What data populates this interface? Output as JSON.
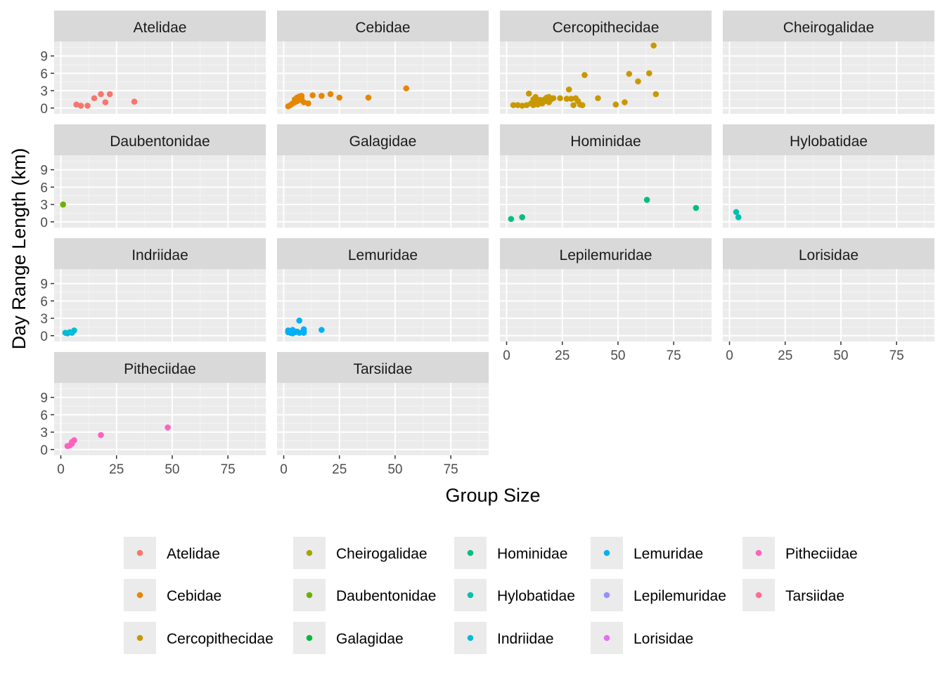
{
  "chart_data": {
    "type": "scatter",
    "xlabel": "Group Size",
    "ylabel": "Day Range Length (km)",
    "xlim": [
      -3,
      92
    ],
    "ylim": [
      -1,
      11.5
    ],
    "x_ticks": [
      0,
      25,
      50,
      75
    ],
    "y_ticks": [
      0,
      3,
      6,
      9
    ],
    "x_tick_labels": [
      "0",
      "25",
      "50",
      "75"
    ],
    "y_tick_labels": [
      "0",
      "3",
      "6",
      "9"
    ],
    "grid": true,
    "legend_position": "bottom",
    "facet_layout": {
      "columns": 4,
      "rows": 5
    },
    "facets": [
      {
        "name": "Atelidae",
        "color": "#F8766D",
        "points": [
          [
            7,
            0.6
          ],
          [
            9,
            0.4
          ],
          [
            12,
            0.4
          ],
          [
            15,
            1.7
          ],
          [
            18,
            2.4
          ],
          [
            20,
            1.0
          ],
          [
            22,
            2.4
          ],
          [
            33,
            1.1
          ]
        ]
      },
      {
        "name": "Cebidae",
        "color": "#E58700",
        "points": [
          [
            2,
            0.3
          ],
          [
            3,
            0.5
          ],
          [
            4,
            0.8
          ],
          [
            5,
            1.5
          ],
          [
            5,
            1.0
          ],
          [
            6,
            1.2
          ],
          [
            6,
            1.8
          ],
          [
            7,
            2.0
          ],
          [
            7,
            1.4
          ],
          [
            8,
            2.1
          ],
          [
            8,
            1.6
          ],
          [
            9,
            1.0
          ],
          [
            11,
            0.8
          ],
          [
            13,
            2.2
          ],
          [
            17,
            2.1
          ],
          [
            21,
            2.4
          ],
          [
            25,
            1.8
          ],
          [
            38,
            1.8
          ],
          [
            55,
            3.4
          ]
        ]
      },
      {
        "name": "Cercopithecidae",
        "color": "#C99800",
        "points": [
          [
            3,
            0.5
          ],
          [
            5,
            0.5
          ],
          [
            7,
            0.4
          ],
          [
            9,
            0.5
          ],
          [
            10,
            2.5
          ],
          [
            11,
            0.8
          ],
          [
            12,
            1.5
          ],
          [
            12,
            0.5
          ],
          [
            13,
            1.9
          ],
          [
            13,
            1.0
          ],
          [
            14,
            0.6
          ],
          [
            15,
            1.4
          ],
          [
            16,
            0.8
          ],
          [
            17,
            1.5
          ],
          [
            18,
            1.8
          ],
          [
            18,
            1.2
          ],
          [
            19,
            1.0
          ],
          [
            19,
            1.9
          ],
          [
            20,
            1.5
          ],
          [
            21,
            1.7
          ],
          [
            24,
            1.7
          ],
          [
            27,
            1.6
          ],
          [
            28,
            3.2
          ],
          [
            29,
            1.6
          ],
          [
            30,
            0.5
          ],
          [
            31,
            1.7
          ],
          [
            32,
            1.2
          ],
          [
            33,
            0.6
          ],
          [
            34,
            0.5
          ],
          [
            35,
            5.7
          ],
          [
            41,
            1.7
          ],
          [
            49,
            0.6
          ],
          [
            53,
            1.0
          ],
          [
            55,
            5.9
          ],
          [
            59,
            4.6
          ],
          [
            64,
            6.0
          ],
          [
            66,
            10.8
          ],
          [
            67,
            2.4
          ]
        ]
      },
      {
        "name": "Cheirogalidae",
        "color": "#A3A500",
        "points": []
      },
      {
        "name": "Daubentonidae",
        "color": "#6BB100",
        "points": [
          [
            1,
            3.0
          ]
        ]
      },
      {
        "name": "Galagidae",
        "color": "#00BA38",
        "points": []
      },
      {
        "name": "Hominidae",
        "color": "#00BF7D",
        "points": [
          [
            2,
            0.5
          ],
          [
            7,
            0.8
          ],
          [
            63,
            3.8
          ],
          [
            85,
            2.4
          ]
        ]
      },
      {
        "name": "Hylobatidae",
        "color": "#00C0AF",
        "points": [
          [
            3,
            1.7
          ],
          [
            4,
            0.8
          ]
        ]
      },
      {
        "name": "Indriidae",
        "color": "#00BCD8",
        "points": [
          [
            2,
            0.5
          ],
          [
            3,
            0.4
          ],
          [
            4,
            0.6
          ],
          [
            5,
            0.5
          ],
          [
            6,
            0.9
          ]
        ]
      },
      {
        "name": "Lemuridae",
        "color": "#00B0F6",
        "points": [
          [
            2,
            0.9
          ],
          [
            2,
            0.6
          ],
          [
            3,
            0.5
          ],
          [
            3,
            0.8
          ],
          [
            4,
            0.4
          ],
          [
            4,
            1.0
          ],
          [
            5,
            0.6
          ],
          [
            6,
            0.7
          ],
          [
            7,
            2.6
          ],
          [
            7,
            0.5
          ],
          [
            9,
            0.8
          ],
          [
            9,
            1.1
          ],
          [
            9,
            0.5
          ],
          [
            17,
            1.0
          ]
        ]
      },
      {
        "name": "Lepilemuridae",
        "color": "#9590FF",
        "points": []
      },
      {
        "name": "Lorisidae",
        "color": "#E76BF3",
        "points": []
      },
      {
        "name": "Pitheciidae",
        "color": "#FF62BC",
        "points": [
          [
            3,
            0.6
          ],
          [
            4,
            0.7
          ],
          [
            5,
            1.0
          ],
          [
            5,
            1.3
          ],
          [
            6,
            1.6
          ],
          [
            18,
            2.5
          ],
          [
            48,
            3.8
          ]
        ]
      },
      {
        "name": "Tarsiidae",
        "color": "#FF6C91",
        "points": []
      }
    ],
    "legend_columns": [
      [
        "Atelidae",
        "Cebidae",
        "Cercopithecidae"
      ],
      [
        "Cheirogalidae",
        "Daubentonidae",
        "Galagidae"
      ],
      [
        "Hominidae",
        "Hylobatidae",
        "Indriidae"
      ],
      [
        "Lemuridae",
        "Lepilemuridae",
        "Lorisidae"
      ],
      [
        "Pitheciidae",
        "Tarsiidae"
      ]
    ]
  }
}
